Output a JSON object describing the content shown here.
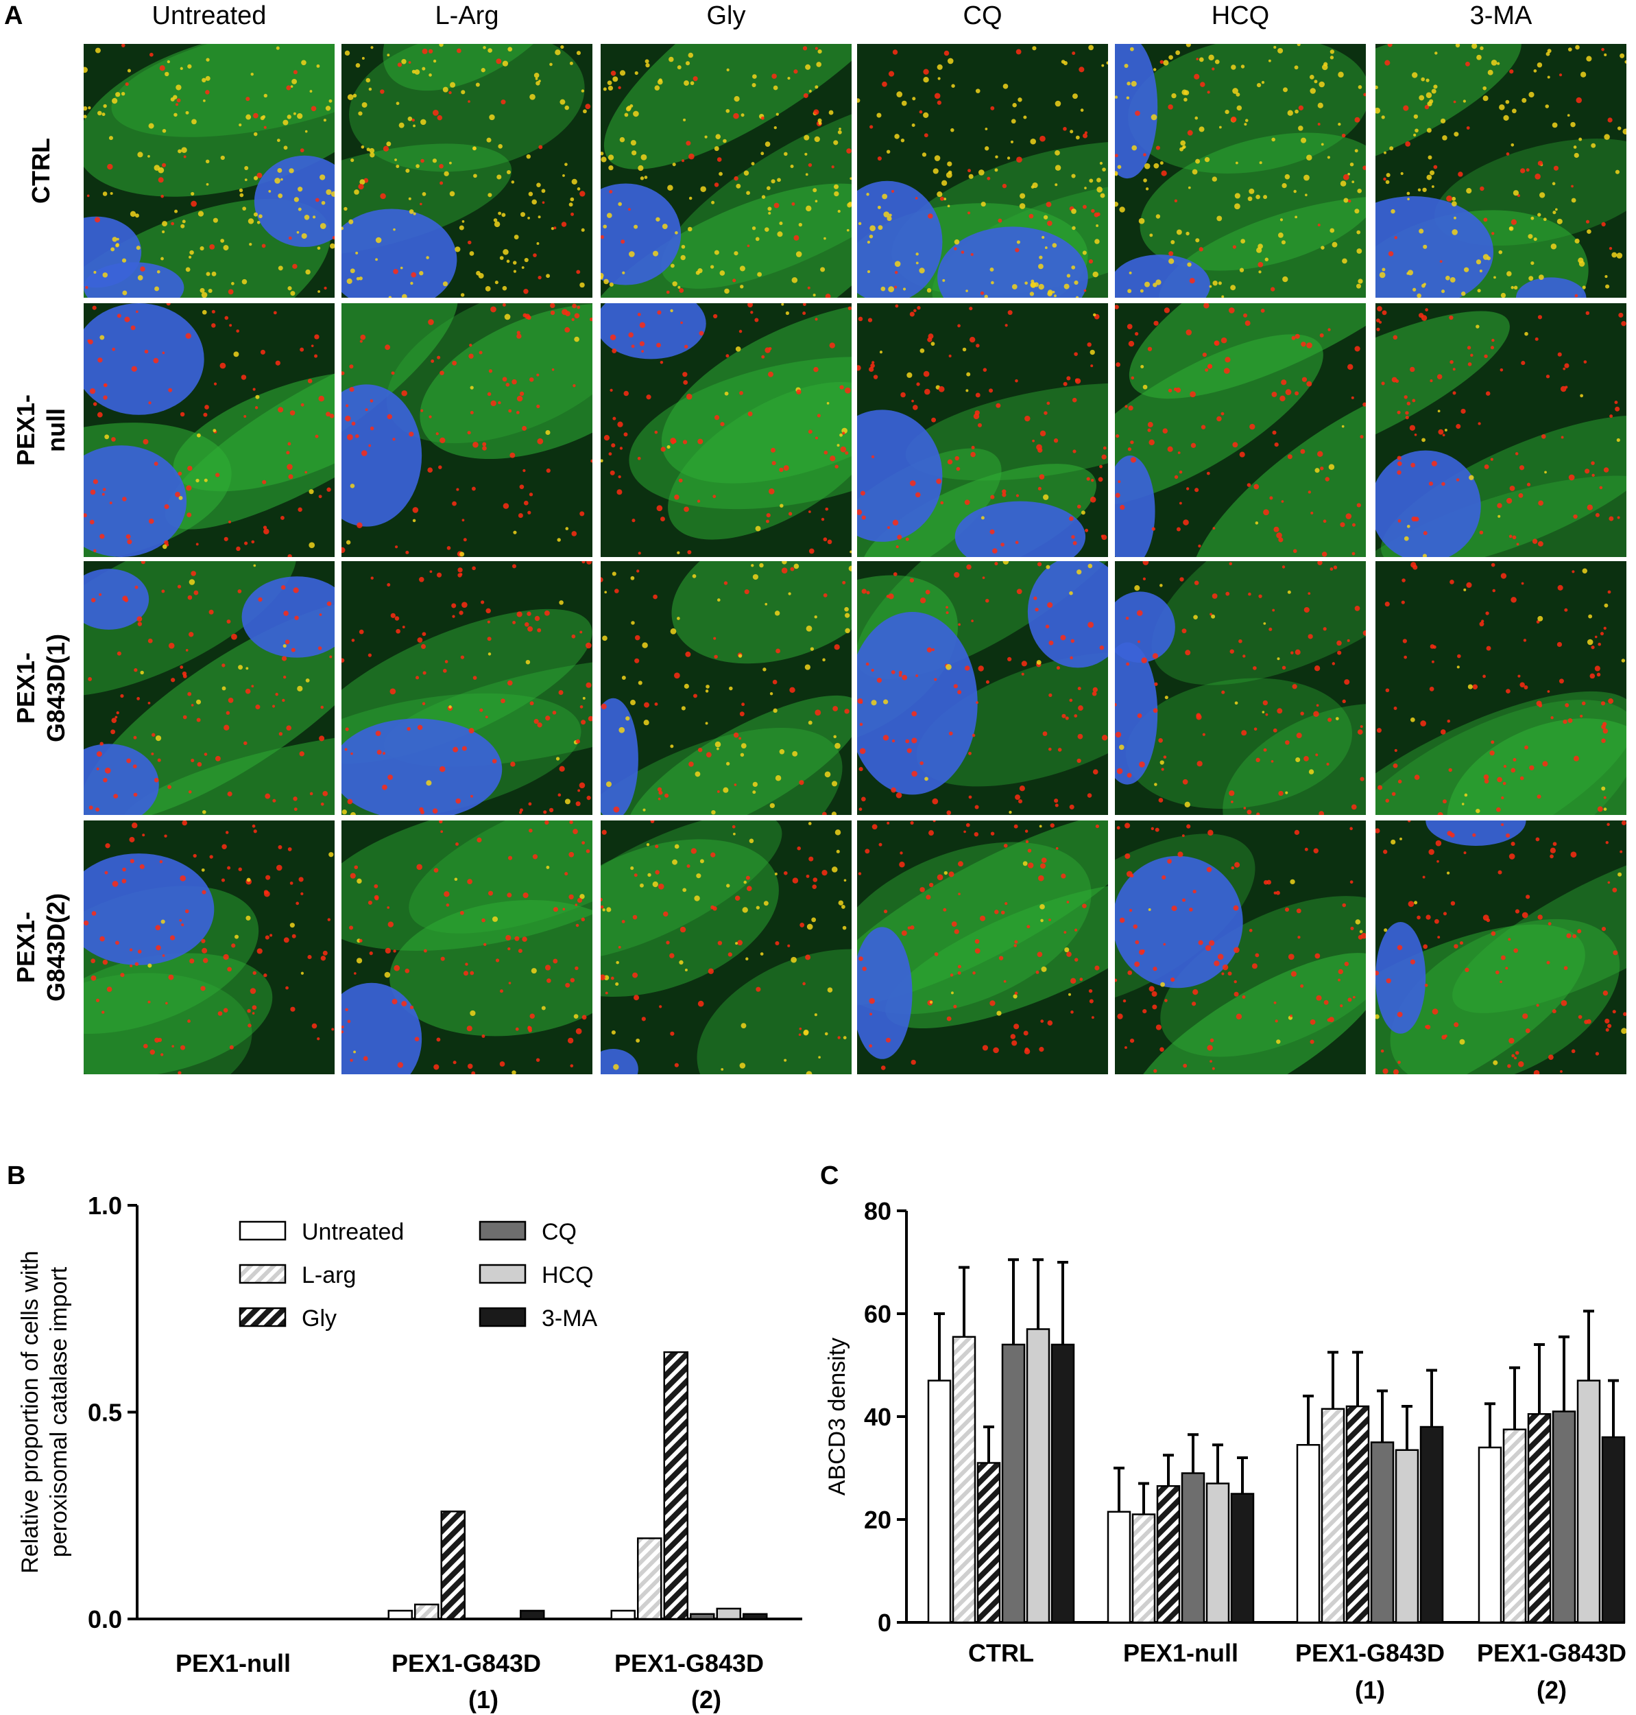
{
  "panel_a": {
    "letter": "A",
    "columns": [
      "Untreated",
      "L-Arg",
      "Gly",
      "CQ",
      "HCQ",
      "3-MA"
    ],
    "rows": [
      {
        "line1": "CTRL",
        "line2": ""
      },
      {
        "line1": "PEX1-",
        "line2": "null"
      },
      {
        "line1": "PEX1-",
        "line2": "G843D(1)"
      },
      {
        "line1": "PEX1-",
        "line2": "G843D(2)"
      }
    ],
    "channel_colors": {
      "background": "#0b3010",
      "signal_green": "#2fae35",
      "puncta_red": "#ff2a12",
      "puncta_yellow": "#f2d21a",
      "nucleus": "#3b63d8"
    }
  },
  "chart_data": [
    {
      "panel": "B",
      "type": "bar",
      "ylabel_lines": [
        "Relative proportion of cells with",
        "peroxisomal catalase import"
      ],
      "ylim": [
        0,
        1.0
      ],
      "yticks": [
        0.0,
        0.5,
        1.0
      ],
      "ytick_labels": [
        "0.0",
        "0.5",
        "1.0"
      ],
      "categories": [
        {
          "line1": "PEX1-null",
          "line2": ""
        },
        {
          "line1": "PEX1-G843D",
          "line2": "(1)"
        },
        {
          "line1": "PEX1-G843D",
          "line2": "(2)"
        }
      ],
      "legend": {
        "position": "top-center",
        "columns": 2
      },
      "series": [
        {
          "name": "Untreated",
          "fill": "#ffffff",
          "pattern": "none",
          "values": [
            0.0,
            0.02,
            0.02
          ]
        },
        {
          "name": "L-arg",
          "fill": "#d9d9d9",
          "pattern": "light-hatch",
          "values": [
            0.0,
            0.035,
            0.195
          ]
        },
        {
          "name": "Gly",
          "fill": "#ffffff",
          "pattern": "dark-hatch",
          "values": [
            0.0,
            0.26,
            0.645
          ]
        },
        {
          "name": "CQ",
          "fill": "#6e6e6e",
          "pattern": "none",
          "values": [
            0.0,
            0.0,
            0.012
          ]
        },
        {
          "name": "HCQ",
          "fill": "#cfcfcf",
          "pattern": "none",
          "values": [
            0.0,
            0.0,
            0.025
          ]
        },
        {
          "name": "3-MA",
          "fill": "#1a1a1a",
          "pattern": "none",
          "values": [
            0.0,
            0.02,
            0.012
          ]
        }
      ]
    },
    {
      "panel": "C",
      "type": "bar",
      "ylabel": "ABCD3 density",
      "ylim": [
        0,
        80
      ],
      "yticks": [
        0,
        20,
        40,
        60,
        80
      ],
      "categories": [
        {
          "line1": "CTRL",
          "line2": ""
        },
        {
          "line1": "PEX1-null",
          "line2": ""
        },
        {
          "line1": "PEX1-G843D",
          "line2": "(1)"
        },
        {
          "line1": "PEX1-G843D",
          "line2": "(2)"
        }
      ],
      "series": [
        {
          "name": "Untreated",
          "values": [
            47,
            21.5,
            34.5,
            34
          ],
          "errors": [
            13,
            8.5,
            9.5,
            8.5
          ]
        },
        {
          "name": "L-arg",
          "values": [
            55.5,
            21,
            41.5,
            37.5
          ],
          "errors": [
            13.5,
            6,
            11,
            12
          ]
        },
        {
          "name": "Gly",
          "values": [
            31,
            26.5,
            42,
            40.5
          ],
          "errors": [
            7,
            6,
            10.5,
            13.5
          ]
        },
        {
          "name": "CQ",
          "values": [
            54,
            29,
            35,
            41
          ],
          "errors": [
            16.5,
            7.5,
            10,
            14.5
          ]
        },
        {
          "name": "HCQ",
          "values": [
            57,
            27,
            33.5,
            47
          ],
          "errors": [
            13.5,
            7.5,
            8.5,
            13.5
          ]
        },
        {
          "name": "3-MA",
          "values": [
            54,
            25,
            38,
            36
          ],
          "errors": [
            16,
            7,
            11,
            11
          ]
        }
      ]
    }
  ]
}
